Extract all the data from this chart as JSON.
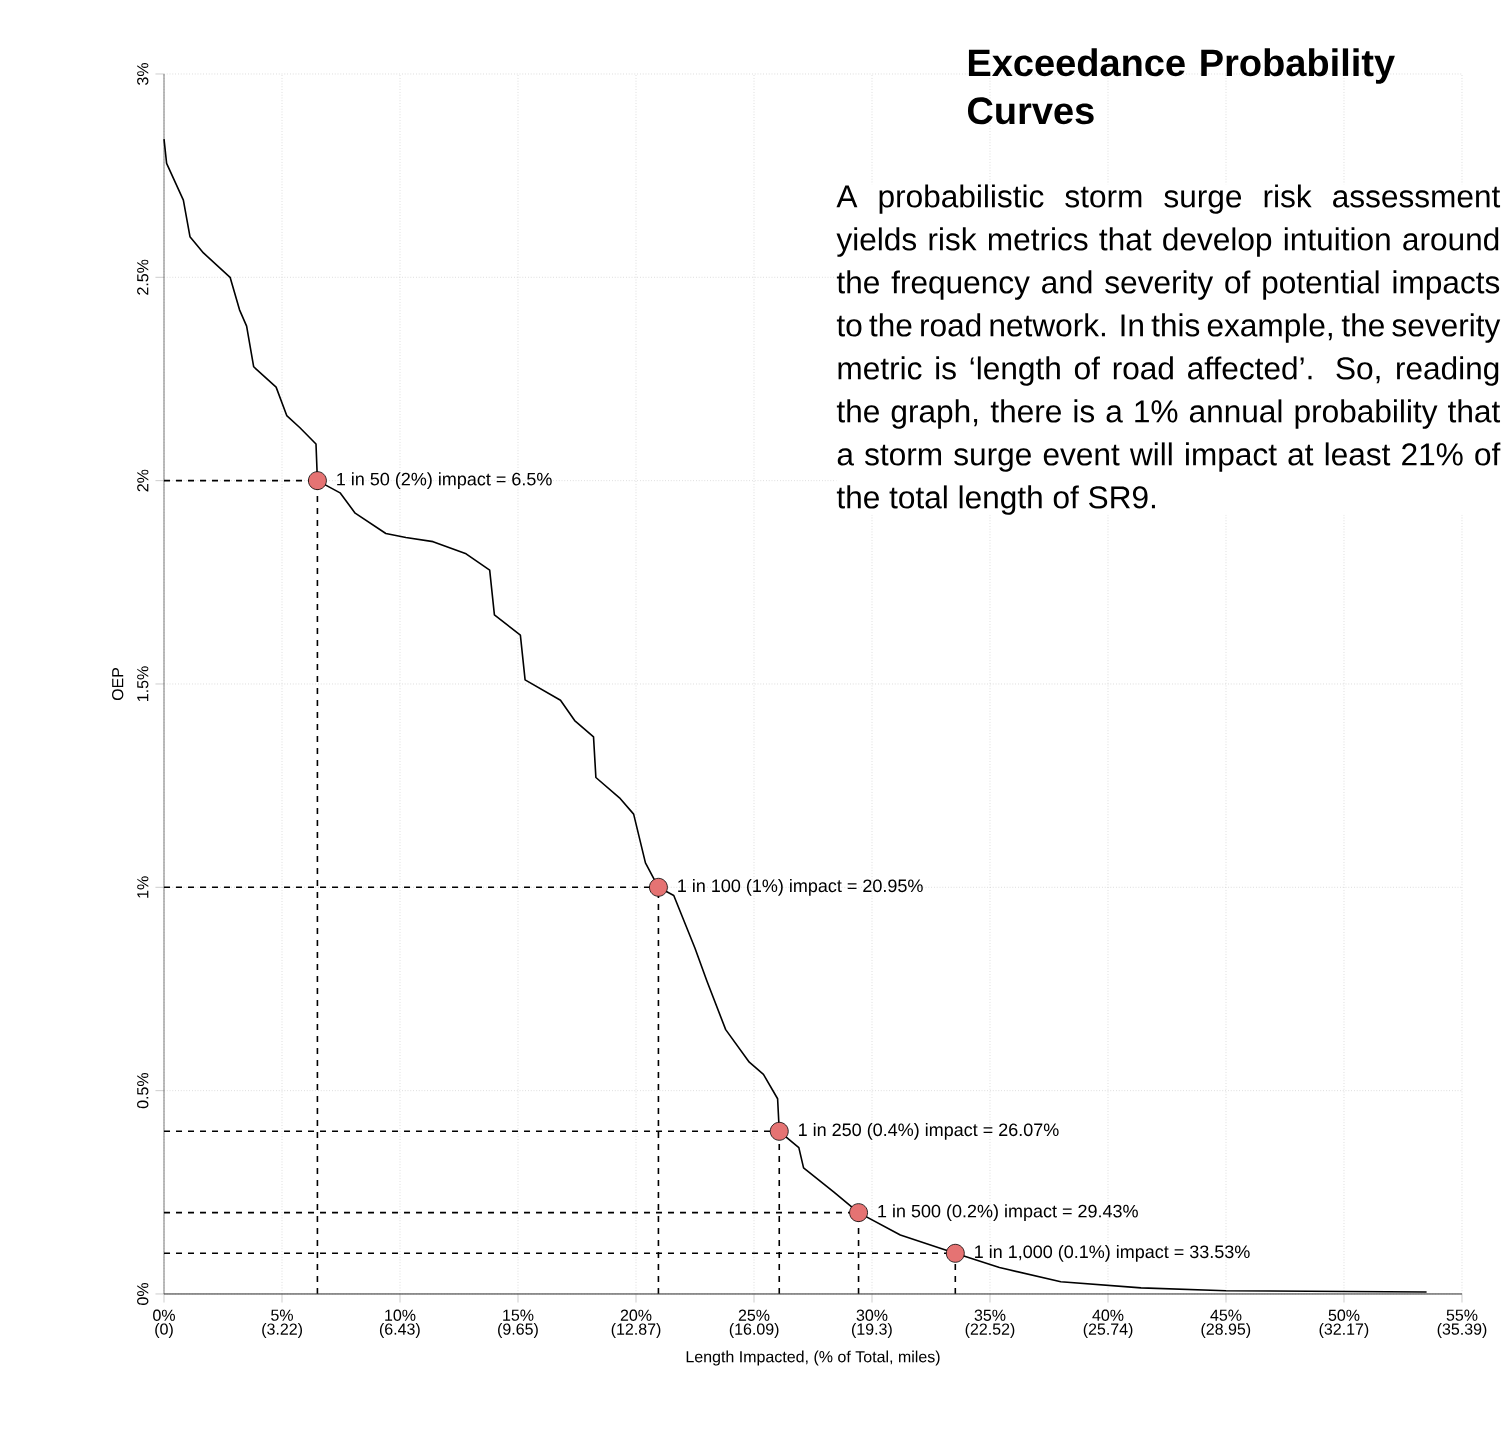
{
  "chart_data": {
    "type": "line",
    "title": "Exceedance Probability Curves",
    "xlabel": "Length Impacted, (% of Total, miles)",
    "ylabel": "OEP",
    "xlim": [
      0,
      55
    ],
    "ylim": [
      0,
      3
    ],
    "xticks": [
      {
        "value": 0,
        "label": "0%"
      },
      {
        "value": 5,
        "label": "5%"
      },
      {
        "value": 10,
        "label": "10%"
      },
      {
        "value": 15,
        "label": "15%"
      },
      {
        "value": 20,
        "label": "20%"
      },
      {
        "value": 25,
        "label": "25%"
      },
      {
        "value": 30,
        "label": "30%"
      },
      {
        "value": 35,
        "label": "35%"
      },
      {
        "value": 40,
        "label": "40%"
      },
      {
        "value": 45,
        "label": "45%"
      },
      {
        "value": 50,
        "label": "50%"
      },
      {
        "value": 55,
        "label": "55%"
      }
    ],
    "x2lim": [
      0,
      35.39
    ],
    "x2ticks": [
      {
        "value": 0,
        "label": "(0)"
      },
      {
        "value": 3.22,
        "label": "(3.22)"
      },
      {
        "value": 6.43,
        "label": "(6.43)"
      },
      {
        "value": 9.65,
        "label": "(9.65)"
      },
      {
        "value": 12.87,
        "label": "(12.87)"
      },
      {
        "value": 16.09,
        "label": "(16.09)"
      },
      {
        "value": 19.3,
        "label": "(19.3)"
      },
      {
        "value": 22.52,
        "label": "(22.52)"
      },
      {
        "value": 25.74,
        "label": "(25.74)"
      },
      {
        "value": 28.95,
        "label": "(28.95)"
      },
      {
        "value": 32.17,
        "label": "(32.17)"
      },
      {
        "value": 35.39,
        "label": "(35.39)"
      }
    ],
    "yticks": [
      {
        "value": 0,
        "label": "0%"
      },
      {
        "value": 0.5,
        "label": "0.5%"
      },
      {
        "value": 1,
        "label": "1%"
      },
      {
        "value": 1.5,
        "label": "1.5%"
      },
      {
        "value": 2,
        "label": "2%"
      },
      {
        "value": 2.5,
        "label": "2.5%"
      },
      {
        "value": 3,
        "label": "3%"
      }
    ],
    "grid": true,
    "line_style": "solid",
    "series": [
      {
        "color": "#000000",
        "x": [
          0,
          0.11,
          0.82,
          1.1,
          1.67,
          2.8,
          3.2,
          3.5,
          3.8,
          4.75,
          5.2,
          5.76,
          6.44,
          6.5,
          7.46,
          8.1,
          9.4,
          10.25,
          11.4,
          12.8,
          13.8,
          14,
          15.1,
          15.3,
          16.8,
          17.4,
          18.2,
          18.3,
          19.3,
          19.9,
          20.4,
          20.95,
          21.6,
          22.5,
          23,
          23.8,
          24.8,
          25.4,
          26.0,
          26.07,
          26.9,
          27.1,
          28.4,
          29.43,
          31.2,
          33.53,
          35.4,
          38,
          41.4,
          45,
          53.5
        ],
        "values": [
          2.84,
          2.78,
          2.69,
          2.6,
          2.56,
          2.5,
          2.42,
          2.38,
          2.28,
          2.23,
          2.16,
          2.13,
          2.09,
          2.0,
          1.97,
          1.92,
          1.87,
          1.86,
          1.85,
          1.82,
          1.78,
          1.67,
          1.62,
          1.51,
          1.46,
          1.41,
          1.37,
          1.27,
          1.22,
          1.18,
          1.06,
          1.0,
          0.98,
          0.85,
          0.77,
          0.65,
          0.57,
          0.54,
          0.48,
          0.4,
          0.36,
          0.31,
          0.25,
          0.2,
          0.145,
          0.1,
          0.065,
          0.03,
          0.015,
          0.008,
          0.005
        ]
      },
      {
        "type": "scatter",
        "color": "#e57373",
        "x": [
          6.5,
          20.95,
          26.07,
          29.43,
          33.53
        ],
        "values": [
          2,
          1,
          0.4,
          0.2,
          0.1
        ]
      }
    ],
    "annotations": [
      {
        "text": "1 in 50 (2%) impact = 6.5%",
        "x": 6.5,
        "y": 2
      },
      {
        "text": "1 in 100 (1%) impact = 20.95%",
        "x": 20.95,
        "y": 1
      },
      {
        "text": "1 in 250 (0.4%) impact = 26.07%",
        "x": 26.07,
        "y": 0.4
      },
      {
        "text": "1 in 500 (0.2%) impact = 29.43%",
        "x": 29.43,
        "y": 0.2
      },
      {
        "text": "1 in 1,000 (0.1%) impact = 33.53%",
        "x": 33.53,
        "y": 0.1
      },
      "A probabilistic storm surge risk assessment yields risk metrics that develop intuition around the frequency and severity of potential impacts to the road network. In this example, the severity metric is ‘length of road affected’. So, reading the graph, there is a 1% annual probability that a storm surge event will impact at least 21% of the total length of SR9."
    ]
  }
}
